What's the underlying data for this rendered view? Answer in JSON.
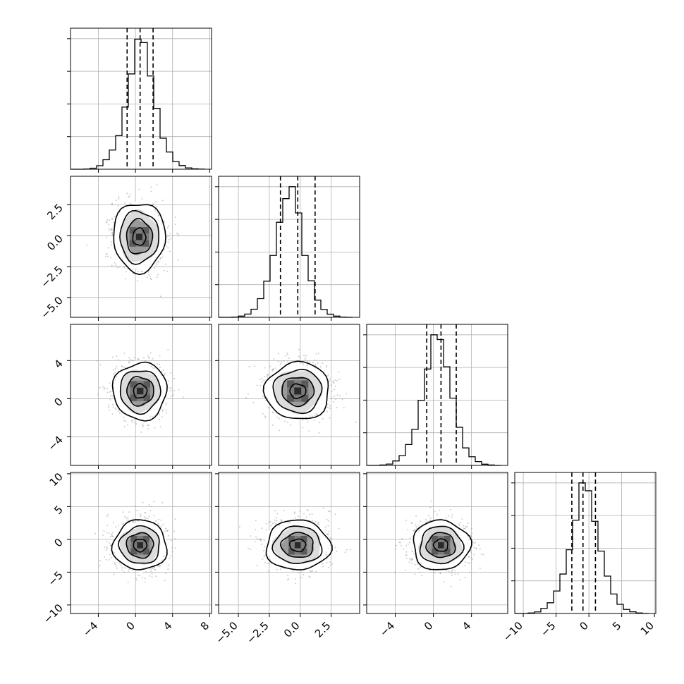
{
  "chart_data": {
    "type": "corner",
    "grid": true,
    "colors": {
      "hist": "#000000",
      "contour": "#000000",
      "points": "#9a9a9a",
      "grid": "#b0b0b0"
    },
    "parameters": [
      {
        "index": 0,
        "quantiles": [
          -0.9,
          0.5,
          1.9
        ],
        "range": [
          -7.0,
          8.2
        ],
        "ticks": [
          -4,
          0,
          4,
          8
        ],
        "tick_labels": [
          "−4",
          "0",
          "4",
          "8"
        ],
        "hist_bins": [
          0.0,
          0.002,
          0.008,
          0.027,
          0.073,
          0.147,
          0.257,
          0.476,
          0.73,
          0.996,
          0.97,
          0.714,
          0.466,
          0.238,
          0.132,
          0.058,
          0.028,
          0.01,
          0.003,
          0.001
        ]
      },
      {
        "index": 1,
        "quantiles": [
          -1.6,
          -0.2,
          1.2
        ],
        "range": [
          -6.6,
          4.8
        ],
        "ticks": [
          -5.0,
          -2.5,
          0.0,
          2.5
        ],
        "tick_labels": [
          "−5.0",
          "−2.5",
          "0.0",
          "2.5"
        ],
        "hist_bins": [
          0.0,
          0.002,
          0.009,
          0.025,
          0.062,
          0.143,
          0.277,
          0.474,
          0.728,
          0.909,
          1.0,
          0.799,
          0.474,
          0.28,
          0.132,
          0.06,
          0.024,
          0.009,
          0.002,
          0.0
        ]
      },
      {
        "index": 2,
        "quantiles": [
          -0.7,
          0.8,
          2.4
        ],
        "range": [
          -7.0,
          7.8
        ],
        "ticks": [
          -4,
          0,
          4
        ],
        "tick_labels": [
          "−4",
          "0",
          "4"
        ],
        "hist_bins": [
          0.0,
          0.003,
          0.01,
          0.034,
          0.075,
          0.16,
          0.276,
          0.498,
          0.738,
          1.0,
          0.964,
          0.755,
          0.515,
          0.292,
          0.134,
          0.066,
          0.029,
          0.009,
          0.003,
          0.0
        ]
      },
      {
        "index": 3,
        "quantiles": [
          -2.6,
          -0.9,
          1.0
        ],
        "range": [
          -11.3,
          10.2
        ],
        "ticks": [
          -10,
          -5,
          0,
          5,
          10
        ],
        "tick_labels": [
          "−10",
          "−5",
          "0",
          "5",
          "10"
        ],
        "hist_bins": [
          0.0,
          0.004,
          0.012,
          0.039,
          0.082,
          0.172,
          0.302,
          0.488,
          0.714,
          1.0,
          0.94,
          0.706,
          0.478,
          0.286,
          0.149,
          0.07,
          0.031,
          0.013,
          0.004,
          0.0
        ]
      }
    ],
    "pairs": [
      {
        "x": 0,
        "y": 1,
        "center": [
          0.4,
          -0.1
        ],
        "sigma": [
          1.4,
          1.4
        ]
      },
      {
        "x": 0,
        "y": 2,
        "center": [
          0.5,
          0.8
        ],
        "sigma": [
          1.45,
          1.5
        ]
      },
      {
        "x": 1,
        "y": 2,
        "center": [
          -0.2,
          0.8
        ],
        "sigma": [
          1.3,
          1.5
        ]
      },
      {
        "x": 0,
        "y": 3,
        "center": [
          0.5,
          -0.9
        ],
        "sigma": [
          1.45,
          1.9
        ]
      },
      {
        "x": 1,
        "y": 3,
        "center": [
          -0.2,
          -0.9
        ],
        "sigma": [
          1.3,
          1.9
        ]
      },
      {
        "x": 2,
        "y": 3,
        "center": [
          0.8,
          -0.9
        ],
        "sigma": [
          1.5,
          1.9
        ]
      }
    ],
    "contour_levels_sigma": [
      0.5,
      1.0,
      1.5,
      2.0
    ]
  }
}
